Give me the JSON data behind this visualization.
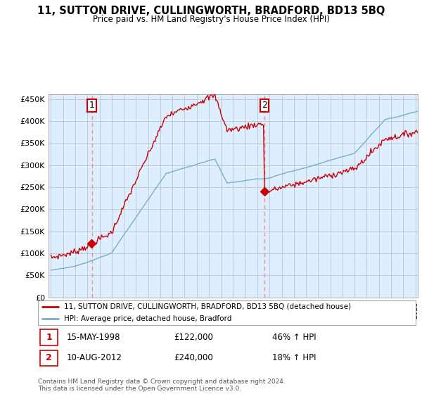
{
  "title": "11, SUTTON DRIVE, CULLINGWORTH, BRADFORD, BD13 5BQ",
  "subtitle": "Price paid vs. HM Land Registry's House Price Index (HPI)",
  "legend_line1": "11, SUTTON DRIVE, CULLINGWORTH, BRADFORD, BD13 5BQ (detached house)",
  "legend_line2": "HPI: Average price, detached house, Bradford",
  "footnote": "Contains HM Land Registry data © Crown copyright and database right 2024.\nThis data is licensed under the Open Government Licence v3.0.",
  "sale1_date": "15-MAY-1998",
  "sale1_price": "£122,000",
  "sale1_hpi": "46% ↑ HPI",
  "sale2_date": "10-AUG-2012",
  "sale2_price": "£240,000",
  "sale2_hpi": "18% ↑ HPI",
  "sale1_year": 1998.37,
  "sale1_value": 122000,
  "sale2_year": 2012.58,
  "sale2_value": 240000,
  "price_line_color": "#cc0000",
  "hpi_line_color": "#7aadcc",
  "chart_bg_color": "#ddeeff",
  "vline_color": "#ff8888",
  "ylim": [
    0,
    460000
  ],
  "xlim_start": 1995.0,
  "xlim_end": 2025.2,
  "background_color": "#ffffff",
  "grid_color": "#bbbbcc"
}
